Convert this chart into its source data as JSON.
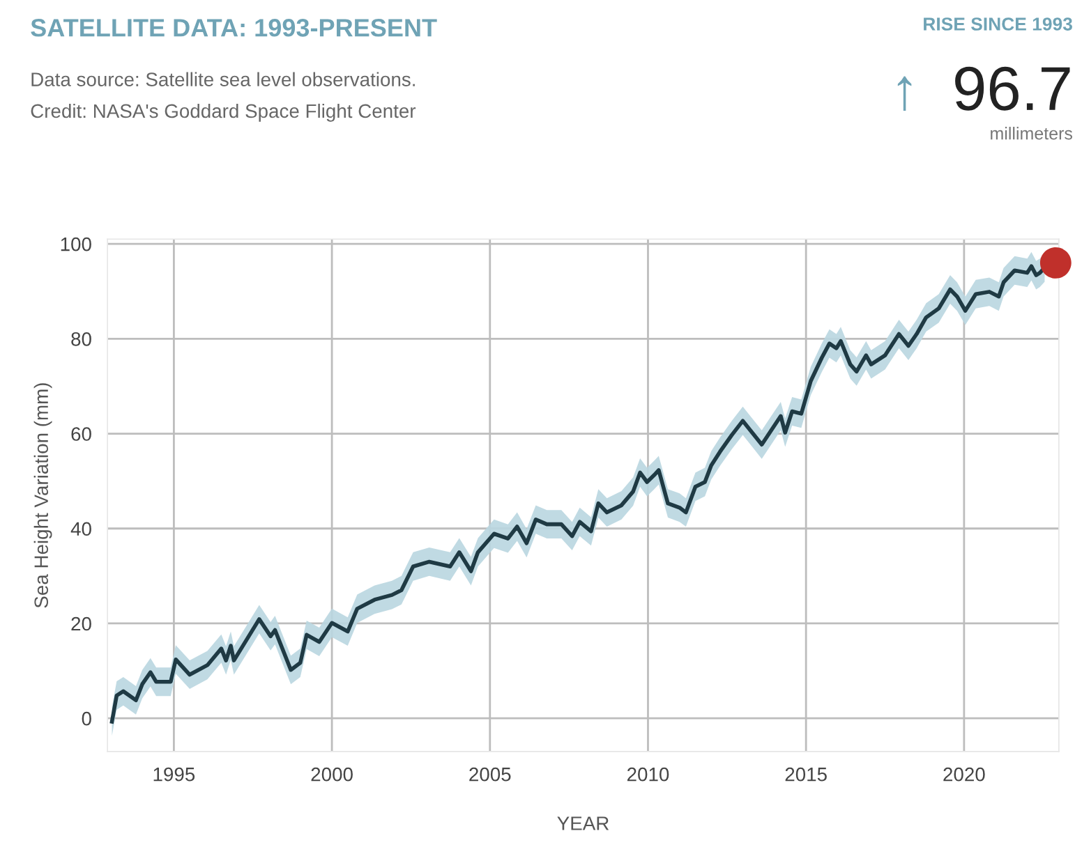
{
  "chart_data": {
    "type": "line",
    "title": "SATELLITE DATA: 1993-PRESENT",
    "subtitle": "Data source: Satellite sea level observations.",
    "annotations": [
      "Credit: NASA's Goddard Space Flight Center",
      "RISE SINCE 1993",
      "↑",
      "96.7",
      "millimeters"
    ],
    "xlabel": "YEAR",
    "ylabel": "Sea Height Variation (mm)",
    "xlim": [
      1992.9,
      2023.0
    ],
    "ylim": [
      -7,
      101
    ],
    "xticks": [
      1995,
      2000,
      2005,
      2010,
      2015,
      2020
    ],
    "yticks": [
      0,
      20,
      40,
      60,
      80,
      100
    ],
    "grid": true,
    "legend": false,
    "marker": "none",
    "line_style": "solid",
    "series": [
      {
        "color": "#1f3a44",
        "x": [
          1993.04,
          1993.19,
          1993.4,
          1993.8,
          1994.0,
          1994.26,
          1994.44,
          1994.9,
          1995.06,
          1995.5,
          1996.06,
          1996.5,
          1996.65,
          1996.8,
          1996.9,
          1997.7,
          1998.06,
          1998.2,
          1998.7,
          1999.0,
          1999.2,
          1999.6,
          2000.0,
          2000.5,
          2000.8,
          2001.35,
          2001.9,
          2002.2,
          2002.57,
          2003.08,
          2003.74,
          2004.03,
          2004.4,
          2004.62,
          2005.13,
          2005.57,
          2005.86,
          2006.16,
          2006.45,
          2006.8,
          2007.26,
          2007.6,
          2007.84,
          2008.2,
          2008.43,
          2008.7,
          2009.16,
          2009.53,
          2009.75,
          2009.97,
          2010.2,
          2010.34,
          2010.63,
          2011.0,
          2011.2,
          2011.5,
          2011.8,
          2012.0,
          2012.28,
          2012.65,
          2013.0,
          2013.3,
          2013.6,
          2013.9,
          2014.2,
          2014.34,
          2014.56,
          2014.85,
          2015.15,
          2015.5,
          2015.74,
          2015.96,
          2016.1,
          2016.4,
          2016.6,
          2016.9,
          2017.06,
          2017.5,
          2017.94,
          2018.24,
          2018.5,
          2018.8,
          2019.2,
          2019.56,
          2019.78,
          2020.04,
          2020.37,
          2020.8,
          2021.1,
          2021.25,
          2021.6,
          2022.0,
          2022.13,
          2022.28,
          2022.4,
          2022.55
        ],
        "values": [
          -0.7,
          4.8,
          5.7,
          3.8,
          7.2,
          9.7,
          7.7,
          7.7,
          12.4,
          9.2,
          11.2,
          14.7,
          12.2,
          15.3,
          12.2,
          20.9,
          17.3,
          18.6,
          10.2,
          11.7,
          17.6,
          16.1,
          20.1,
          18.3,
          23.1,
          25.0,
          26.0,
          27.0,
          32.0,
          33.0,
          32.0,
          35.0,
          31.0,
          35.0,
          38.9,
          37.9,
          40.4,
          36.9,
          41.9,
          40.9,
          40.9,
          38.4,
          41.4,
          39.4,
          45.3,
          43.4,
          44.9,
          47.8,
          51.8,
          49.8,
          51.3,
          52.3,
          45.3,
          44.4,
          43.4,
          48.8,
          49.8,
          53.3,
          56.2,
          59.7,
          62.7,
          60.2,
          57.7,
          60.7,
          63.7,
          60.2,
          64.7,
          64.2,
          71.1,
          76.0,
          79.0,
          78.0,
          79.5,
          74.6,
          73.1,
          76.5,
          74.6,
          76.5,
          81.0,
          78.5,
          81.0,
          84.5,
          86.4,
          90.4,
          88.9,
          85.9,
          89.4,
          89.9,
          88.9,
          91.9,
          94.4,
          93.9,
          95.3,
          93.4,
          93.9,
          95.0
        ],
        "lower": [
          -3.7,
          1.8,
          2.7,
          0.8,
          4.2,
          6.7,
          4.7,
          4.7,
          9.4,
          6.2,
          8.2,
          11.7,
          9.2,
          12.3,
          9.2,
          17.9,
          14.3,
          15.6,
          7.2,
          8.7,
          14.6,
          13.1,
          17.1,
          15.3,
          20.1,
          22.0,
          23.0,
          24.0,
          29.0,
          30.0,
          29.0,
          32.0,
          28.0,
          32.0,
          35.9,
          34.9,
          37.4,
          33.9,
          38.9,
          37.9,
          37.9,
          35.4,
          38.4,
          36.4,
          42.3,
          40.4,
          41.9,
          44.8,
          48.8,
          46.8,
          48.3,
          49.3,
          42.3,
          41.4,
          40.4,
          45.8,
          46.8,
          50.3,
          53.2,
          56.7,
          59.7,
          57.2,
          54.7,
          57.7,
          60.7,
          57.2,
          61.7,
          61.2,
          68.1,
          73.0,
          76.0,
          75.0,
          76.5,
          71.6,
          70.1,
          73.5,
          71.6,
          73.5,
          78.0,
          75.5,
          78.0,
          81.5,
          83.4,
          87.4,
          85.9,
          82.9,
          86.4,
          86.9,
          85.9,
          88.9,
          91.4,
          90.9,
          92.3,
          90.4,
          90.9,
          92.0
        ],
        "upper": [
          2.3,
          7.8,
          8.7,
          6.8,
          10.2,
          12.7,
          10.7,
          10.7,
          15.4,
          12.2,
          14.2,
          17.7,
          15.2,
          18.3,
          15.2,
          23.9,
          20.3,
          21.6,
          13.2,
          14.7,
          20.6,
          19.1,
          23.1,
          21.3,
          26.1,
          28.0,
          29.0,
          30.0,
          35.0,
          36.0,
          35.0,
          38.0,
          34.0,
          38.0,
          41.9,
          40.9,
          43.4,
          39.9,
          44.9,
          43.9,
          43.9,
          41.4,
          44.4,
          42.4,
          48.3,
          46.4,
          47.9,
          50.8,
          54.8,
          52.8,
          54.3,
          55.3,
          48.3,
          47.4,
          46.4,
          51.8,
          52.8,
          56.3,
          59.2,
          62.7,
          65.7,
          63.2,
          60.7,
          63.7,
          66.7,
          63.2,
          67.7,
          67.2,
          74.1,
          79.0,
          82.0,
          81.0,
          82.5,
          77.6,
          76.1,
          79.5,
          77.6,
          79.5,
          84.0,
          81.5,
          84.0,
          87.5,
          89.4,
          93.4,
          91.9,
          88.9,
          92.4,
          92.9,
          91.9,
          94.9,
          97.4,
          96.9,
          98.3,
          96.4,
          96.9,
          98.0
        ]
      },
      {
        "type": "scatter",
        "color": "#c0302b",
        "x": [
          2022.9
        ],
        "values": [
          96
        ],
        "marker": "circle"
      }
    ]
  }
}
